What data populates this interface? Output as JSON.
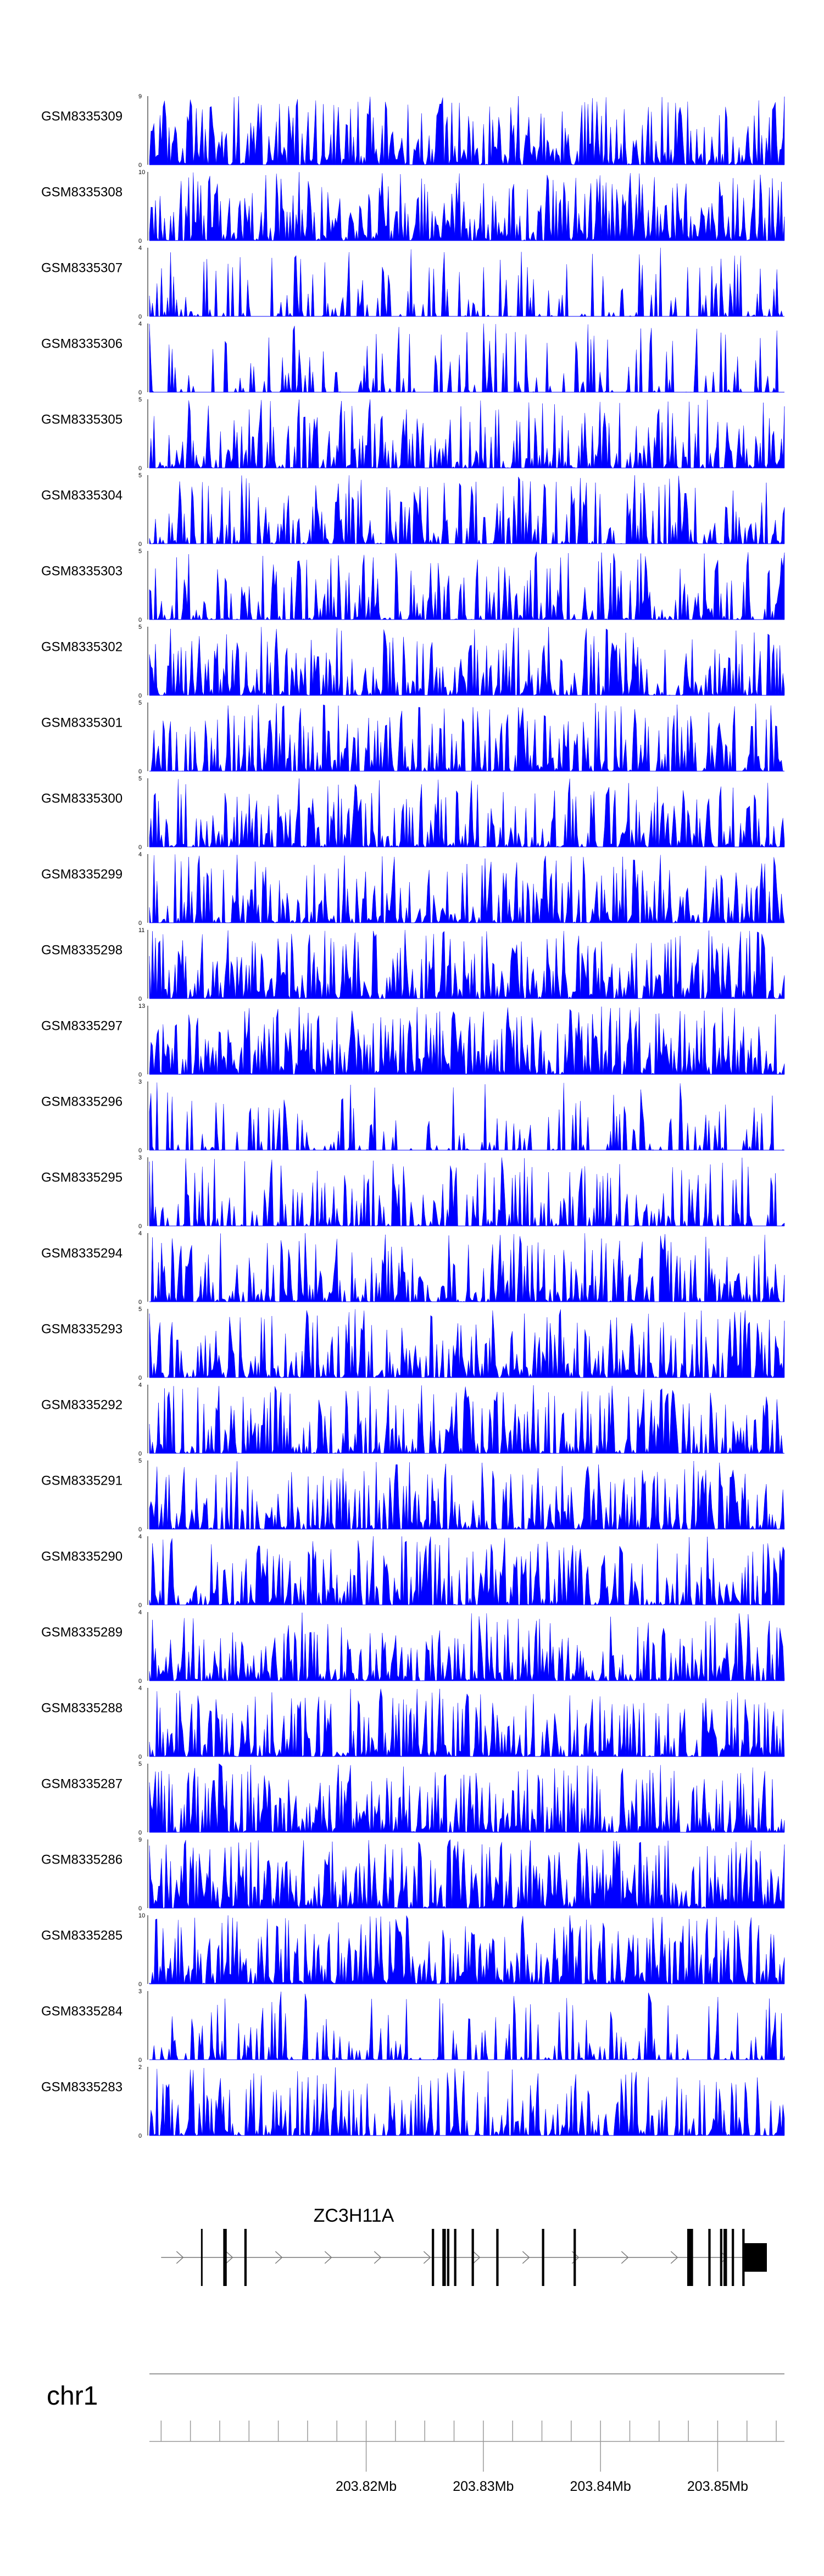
{
  "chart_data": {
    "type": "area",
    "fill_color": "#0000ff",
    "tracks": [
      {
        "name": "GSM8335309",
        "ymax": "9",
        "ymin": "0",
        "seed": 11,
        "density": 0.92,
        "spikiness": 0.35
      },
      {
        "name": "GSM8335308",
        "ymax": "10",
        "ymin": "0",
        "seed": 23,
        "density": 0.95,
        "spikiness": 0.35
      },
      {
        "name": "GSM8335307",
        "ymax": "4",
        "ymin": "0",
        "seed": 37,
        "density": 0.42,
        "spikiness": 0.7
      },
      {
        "name": "GSM8335306",
        "ymax": "4",
        "ymin": "0",
        "seed": 41,
        "density": 0.35,
        "spikiness": 0.55
      },
      {
        "name": "GSM8335305",
        "ymax": "5",
        "ymin": "0",
        "seed": 53,
        "density": 0.75,
        "spikiness": 0.55
      },
      {
        "name": "GSM8335304",
        "ymax": "5",
        "ymin": "0",
        "seed": 67,
        "density": 0.7,
        "spikiness": 0.55
      },
      {
        "name": "GSM8335303",
        "ymax": "5",
        "ymin": "0",
        "seed": 71,
        "density": 0.65,
        "spikiness": 0.6
      },
      {
        "name": "GSM8335302",
        "ymax": "5",
        "ymin": "0",
        "seed": 83,
        "density": 0.75,
        "spikiness": 0.55
      },
      {
        "name": "GSM8335301",
        "ymax": "5",
        "ymin": "0",
        "seed": 97,
        "density": 0.78,
        "spikiness": 0.55
      },
      {
        "name": "GSM8335300",
        "ymax": "5",
        "ymin": "0",
        "seed": 101,
        "density": 0.78,
        "spikiness": 0.55
      },
      {
        "name": "GSM8335299",
        "ymax": "4",
        "ymin": "0",
        "seed": 113,
        "density": 0.82,
        "spikiness": 0.5
      },
      {
        "name": "GSM8335298",
        "ymax": "11",
        "ymin": "0",
        "seed": 127,
        "density": 0.92,
        "spikiness": 0.35
      },
      {
        "name": "GSM8335297",
        "ymax": "13",
        "ymin": "0",
        "seed": 131,
        "density": 0.95,
        "spikiness": 0.3
      },
      {
        "name": "GSM8335296",
        "ymax": "3",
        "ymin": "0",
        "seed": 149,
        "density": 0.4,
        "spikiness": 0.6
      },
      {
        "name": "GSM8335295",
        "ymax": "3",
        "ymin": "0",
        "seed": 151,
        "density": 0.6,
        "spikiness": 0.65
      },
      {
        "name": "GSM8335294",
        "ymax": "4",
        "ymin": "0",
        "seed": 163,
        "density": 0.8,
        "spikiness": 0.5
      },
      {
        "name": "GSM8335293",
        "ymax": "5",
        "ymin": "0",
        "seed": 173,
        "density": 0.85,
        "spikiness": 0.5
      },
      {
        "name": "GSM8335292",
        "ymax": "4",
        "ymin": "0",
        "seed": 181,
        "density": 0.8,
        "spikiness": 0.5
      },
      {
        "name": "GSM8335291",
        "ymax": "5",
        "ymin": "0",
        "seed": 191,
        "density": 0.8,
        "spikiness": 0.5
      },
      {
        "name": "GSM8335290",
        "ymax": "4",
        "ymin": "0",
        "seed": 199,
        "density": 0.8,
        "spikiness": 0.5
      },
      {
        "name": "GSM8335289",
        "ymax": "4",
        "ymin": "0",
        "seed": 211,
        "density": 0.85,
        "spikiness": 0.45
      },
      {
        "name": "GSM8335288",
        "ymax": "4",
        "ymin": "0",
        "seed": 223,
        "density": 0.85,
        "spikiness": 0.45
      },
      {
        "name": "GSM8335287",
        "ymax": "5",
        "ymin": "0",
        "seed": 227,
        "density": 0.88,
        "spikiness": 0.45
      },
      {
        "name": "GSM8335286",
        "ymax": "9",
        "ymin": "0",
        "seed": 239,
        "density": 0.95,
        "spikiness": 0.35
      },
      {
        "name": "GSM8335285",
        "ymax": "10",
        "ymin": "0",
        "seed": 241,
        "density": 0.95,
        "spikiness": 0.35
      },
      {
        "name": "GSM8335284",
        "ymax": "3",
        "ymin": "0",
        "seed": 251,
        "density": 0.5,
        "spikiness": 0.6
      },
      {
        "name": "GSM8335283",
        "ymax": "2",
        "ymin": "0",
        "seed": 263,
        "density": 0.75,
        "spikiness": 0.55
      }
    ],
    "gene": {
      "name": "ZC3H11A",
      "strand": "+",
      "start_mb": 203.8025,
      "end_mb": 203.8542,
      "exons": [
        {
          "start_mb": 203.8059,
          "end_mb": 203.806
        },
        {
          "start_mb": 203.8078,
          "end_mb": 203.8079
        },
        {
          "start_mb": 203.8079,
          "end_mb": 203.8081
        },
        {
          "start_mb": 203.8096,
          "end_mb": 203.8098
        },
        {
          "start_mb": 203.8256,
          "end_mb": 203.8258
        },
        {
          "start_mb": 203.8265,
          "end_mb": 203.8268
        },
        {
          "start_mb": 203.8269,
          "end_mb": 203.8271
        },
        {
          "start_mb": 203.8275,
          "end_mb": 203.8277
        },
        {
          "start_mb": 203.829,
          "end_mb": 203.8292
        },
        {
          "start_mb": 203.8311,
          "end_mb": 203.8313
        },
        {
          "start_mb": 203.835,
          "end_mb": 203.8352
        },
        {
          "start_mb": 203.8377,
          "end_mb": 203.8379
        },
        {
          "start_mb": 203.8474,
          "end_mb": 203.8479
        },
        {
          "start_mb": 203.8492,
          "end_mb": 203.8494
        },
        {
          "start_mb": 203.8502,
          "end_mb": 203.8504
        },
        {
          "start_mb": 203.8505,
          "end_mb": 203.8508
        },
        {
          "start_mb": 203.8512,
          "end_mb": 203.8514
        },
        {
          "start_mb": 203.8521,
          "end_mb": 203.8523
        },
        {
          "start_mb": 203.8523,
          "end_mb": 203.8542
        }
      ]
    },
    "chromosome": "chr1",
    "x_axis": {
      "min_mb": 203.8015,
      "max_mb": 203.8557,
      "minor_step_mb": 0.0025,
      "labels": [
        {
          "value": 203.82,
          "text": "203.82Mb"
        },
        {
          "value": 203.83,
          "text": "203.83Mb"
        },
        {
          "value": 203.84,
          "text": "203.84Mb"
        },
        {
          "value": 203.85,
          "text": "203.85Mb"
        }
      ]
    }
  }
}
